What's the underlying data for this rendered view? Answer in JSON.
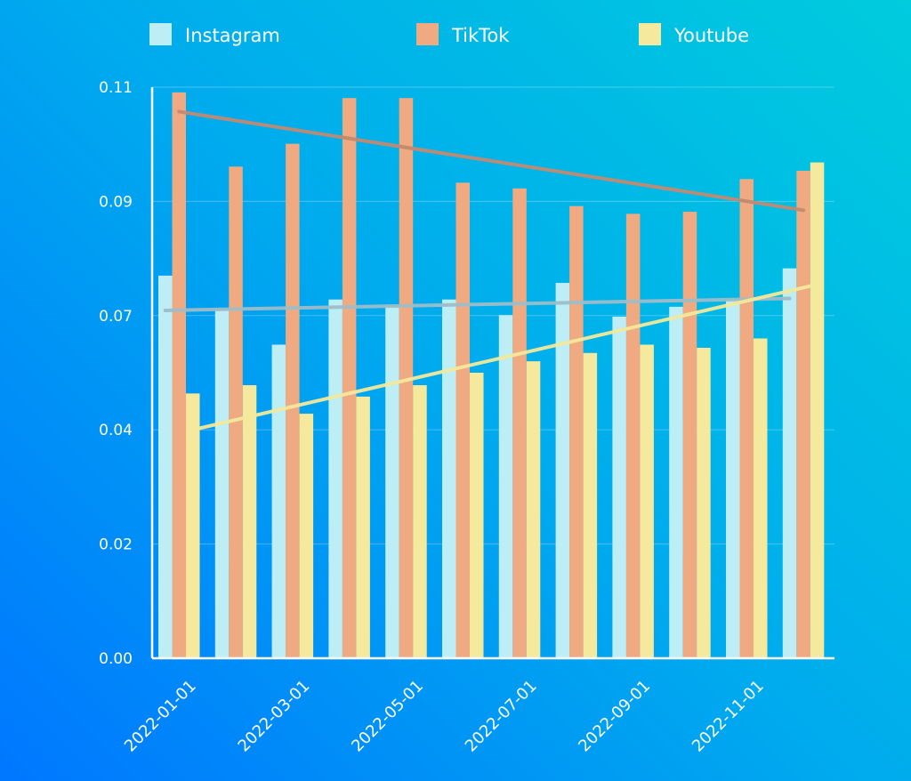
{
  "chart_data": {
    "type": "bar",
    "title": "",
    "xlabel": "",
    "ylabel": "",
    "ylim": [
      0,
      0.11
    ],
    "grid": true,
    "legend_position": "top",
    "categories": [
      "2022-01-01",
      "2022-02-01",
      "2022-03-01",
      "2022-04-01",
      "2022-05-01",
      "2022-06-01",
      "2022-07-01",
      "2022-08-01",
      "2022-09-01",
      "2022-10-01",
      "2022-11-01",
      "2022-12-01"
    ],
    "y_ticks": [
      {
        "value": 0.0,
        "label": "0.00"
      },
      {
        "value": 0.022,
        "label": "0.02"
      },
      {
        "value": 0.044,
        "label": "0.04"
      },
      {
        "value": 0.066,
        "label": "0.07"
      },
      {
        "value": 0.088,
        "label": "0.09"
      },
      {
        "value": 0.11,
        "label": "0.11"
      }
    ],
    "x_tick_labels": [
      {
        "index": 0,
        "label": "2022-01-01"
      },
      {
        "index": 2,
        "label": "2022-03-01"
      },
      {
        "index": 4,
        "label": "2022-05-01"
      },
      {
        "index": 6,
        "label": "2022-07-01"
      },
      {
        "index": 8,
        "label": "2022-09-01"
      },
      {
        "index": 10,
        "label": "2022-11-01"
      }
    ],
    "series": [
      {
        "name": "Instagram",
        "color": "#bdeef5",
        "trend_color": "#9ebdc9",
        "values": [
          0.0737,
          0.0672,
          0.0604,
          0.0691,
          0.0678,
          0.0691,
          0.0661,
          0.0723,
          0.0658,
          0.0677,
          0.0691,
          0.0751
        ],
        "trend": [
          0.067,
          0.0693
        ]
      },
      {
        "name": "TikTok",
        "color": "#f0aa82",
        "trend_color": "#c28a72",
        "values": [
          0.109,
          0.0947,
          0.0991,
          0.1079,
          0.1079,
          0.0916,
          0.0905,
          0.0871,
          0.0856,
          0.086,
          0.0923,
          0.0939
        ],
        "trend": [
          0.1053,
          0.0863
        ]
      },
      {
        "name": "Youtube",
        "color": "#f4e99c",
        "trend_color": "#f4e99c",
        "values": [
          0.051,
          0.0526,
          0.0471,
          0.0504,
          0.0526,
          0.055,
          0.0572,
          0.0588,
          0.0604,
          0.0598,
          0.0616,
          0.0955
        ],
        "trend": [
          0.044,
          0.072
        ]
      }
    ]
  }
}
